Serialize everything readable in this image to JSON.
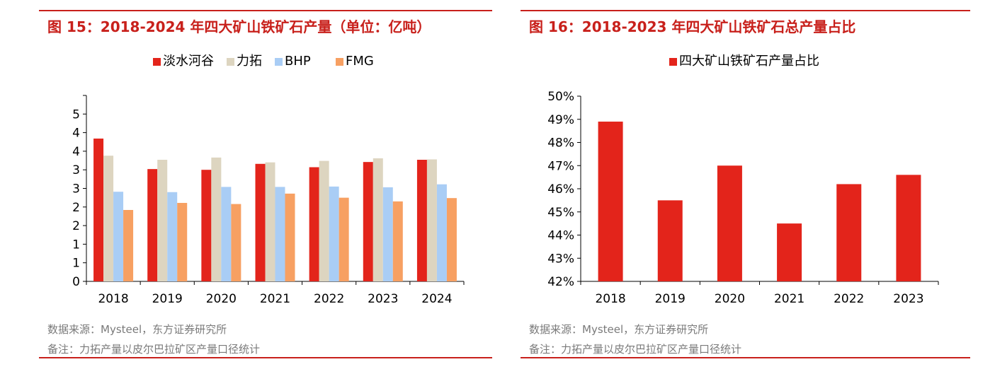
{
  "left": {
    "title": "图 15：2018-2024 年四大矿山铁矿石产量（单位：亿吨）",
    "source": "数据来源：Mysteel，东方证券研究所",
    "note": "备注：力拓产量以皮尔巴拉矿区产量口径统计"
  },
  "right": {
    "title": "图 16：2018-2023 年四大矿山铁矿石总产量占比",
    "source": "数据来源：Mysteel，东方证券研究所",
    "note": "备注：力拓产量以皮尔巴拉矿区产量口径统计"
  },
  "chart_data": [
    {
      "type": "bar",
      "title": "2018-2024 年四大矿山铁矿石产量（单位：亿吨）",
      "categories": [
        "2018",
        "2019",
        "2020",
        "2021",
        "2022",
        "2023",
        "2024"
      ],
      "ylim": [
        0,
        5
      ],
      "yticks": [
        0,
        0.5,
        1,
        1.5,
        2,
        2.5,
        3,
        3.5,
        4,
        4.5
      ],
      "ytick_labels": [
        "0",
        "1",
        "1",
        "2",
        "2",
        "3",
        "3",
        "4",
        "4",
        "5"
      ],
      "legend_position": "top-center",
      "series": [
        {
          "name": "淡水河谷",
          "color": "#e3241b",
          "values": [
            3.84,
            3.02,
            3.0,
            3.16,
            3.07,
            3.21,
            3.27
          ]
        },
        {
          "name": "力拓",
          "color": "#ddd5c0",
          "values": [
            3.38,
            3.27,
            3.33,
            3.2,
            3.24,
            3.31,
            3.28
          ]
        },
        {
          "name": "BHP",
          "color": "#a9cdf5",
          "values": [
            2.41,
            2.4,
            2.54,
            2.54,
            2.55,
            2.53,
            2.61
          ]
        },
        {
          "name": "FMG",
          "color": "#f7a062",
          "values": [
            1.92,
            2.11,
            2.08,
            2.36,
            2.25,
            2.15,
            2.24
          ]
        }
      ]
    },
    {
      "type": "bar",
      "title": "2018-2023 年四大矿山铁矿石总产量占比",
      "categories": [
        "2018",
        "2019",
        "2020",
        "2021",
        "2022",
        "2023"
      ],
      "ylim": [
        42,
        50
      ],
      "yticks": [
        42,
        43,
        44,
        45,
        46,
        47,
        48,
        49,
        50
      ],
      "ytick_labels": [
        "42%",
        "43%",
        "44%",
        "45%",
        "46%",
        "47%",
        "48%",
        "49%",
        "50%"
      ],
      "legend_position": "top-center",
      "series": [
        {
          "name": "四大矿山铁矿石产量占比",
          "color": "#e3241b",
          "values": [
            48.9,
            45.5,
            47.0,
            44.5,
            46.2,
            46.6
          ]
        }
      ]
    }
  ]
}
